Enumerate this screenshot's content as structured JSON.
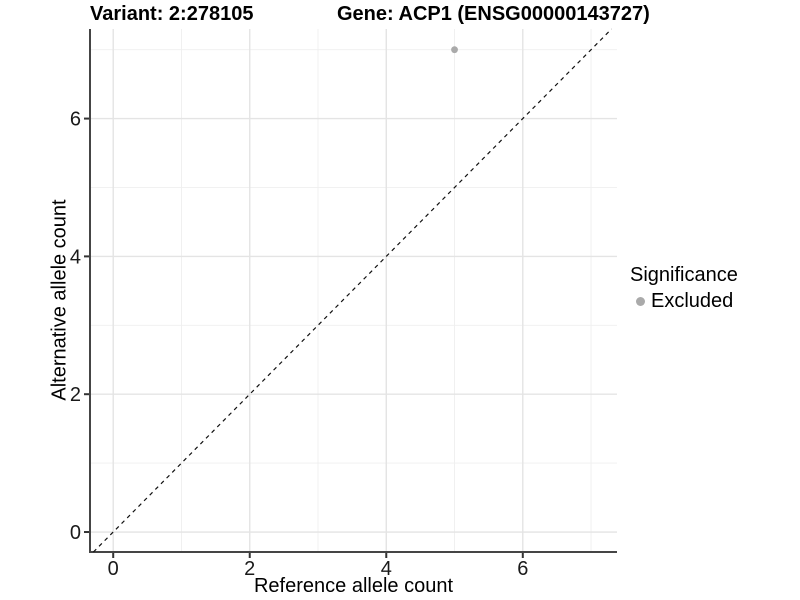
{
  "chart_data": {
    "type": "scatter",
    "title_left": "Variant: 2:278105",
    "title_right": "Gene: ACP1 (ENSG00000143727)",
    "xlabel": "Reference allele count",
    "ylabel": "Alternative allele count",
    "xlim": [
      -0.34,
      7.38
    ],
    "ylim": [
      -0.29,
      7.3
    ],
    "x_major_ticks": [
      0,
      2,
      4,
      6
    ],
    "x_minor_ticks": [
      1,
      3,
      5,
      7
    ],
    "y_major_ticks": [
      0,
      2,
      4,
      6
    ],
    "y_minor_ticks": [
      1,
      3,
      5,
      7
    ],
    "grid": true,
    "legend_position": "right",
    "legend": {
      "title": "Significance",
      "items": [
        {
          "label": "Excluded",
          "color": "#aaaaaa"
        }
      ]
    },
    "reference_line": {
      "type": "identity",
      "line_style": "dashed",
      "color": "#111111"
    },
    "series": [
      {
        "name": "Excluded",
        "color": "#aaaaaa",
        "marker": "circle",
        "points": [
          {
            "x": 5,
            "y": 7
          }
        ]
      }
    ],
    "panel_style": {
      "background": "#ffffff",
      "grid_major_color": "#e4e4e4",
      "grid_minor_color": "#efefef",
      "axis_line_color": "#454545",
      "tick_color": "#333333",
      "tick_label_color": "#1a1a1a"
    }
  }
}
